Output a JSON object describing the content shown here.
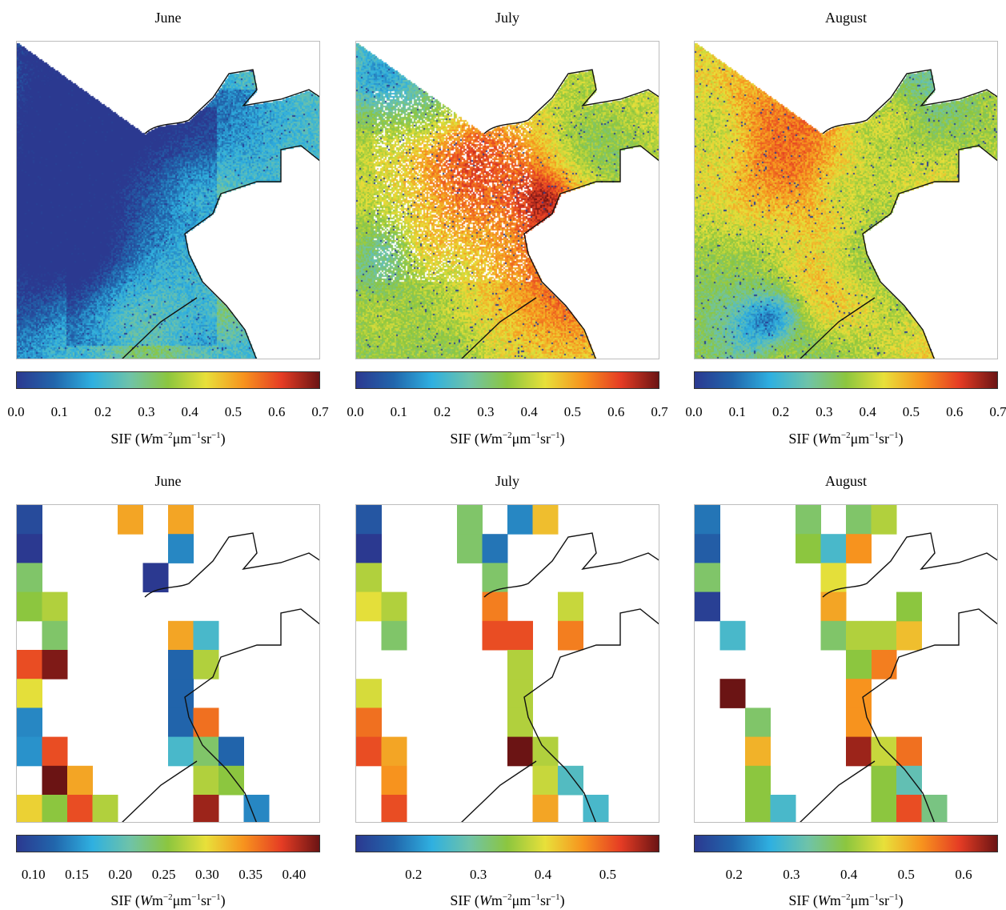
{
  "colorbar_colors": [
    "#2b3990",
    "#2166ac",
    "#2fb0e0",
    "#6fc3a8",
    "#8cc63f",
    "#e8e03a",
    "#f7931e",
    "#e53c24",
    "#6b1414"
  ],
  "colorbar_label": {
    "prefix": "SIF (",
    "var": "W",
    "unit_m": "m",
    "exp_m": "−2",
    "unit_um": "μm",
    "exp_um": "−1",
    "unit_sr": "sr",
    "exp_sr": "−1",
    "suffix": ")"
  },
  "top_row": [
    {
      "title": "June",
      "ticks": [
        "0.0",
        "0.1",
        "0.2",
        "0.3",
        "0.4",
        "0.5",
        "0.6",
        "0.7"
      ],
      "range": [
        0,
        0.7
      ]
    },
    {
      "title": "July",
      "ticks": [
        "0.0",
        "0.1",
        "0.2",
        "0.3",
        "0.4",
        "0.5",
        "0.6",
        "0.7"
      ],
      "range": [
        0,
        0.7
      ]
    },
    {
      "title": "August",
      "ticks": [
        "0.0",
        "0.1",
        "0.2",
        "0.3",
        "0.4",
        "0.5",
        "0.6",
        "0.7"
      ],
      "range": [
        0,
        0.7
      ]
    }
  ],
  "bottom_row": [
    {
      "title": "June",
      "ticks": [
        "0.10",
        "0.15",
        "0.20",
        "0.25",
        "0.30",
        "0.35",
        "0.40"
      ],
      "range": [
        0.08,
        0.43
      ]
    },
    {
      "title": "July",
      "ticks": [
        "0.2",
        "0.3",
        "0.4",
        "0.5"
      ],
      "range": [
        0.11,
        0.58
      ]
    },
    {
      "title": "August",
      "ticks": [
        "0.2",
        "0.3",
        "0.4",
        "0.5",
        "0.6"
      ],
      "range": [
        0.13,
        0.66
      ]
    }
  ]
}
